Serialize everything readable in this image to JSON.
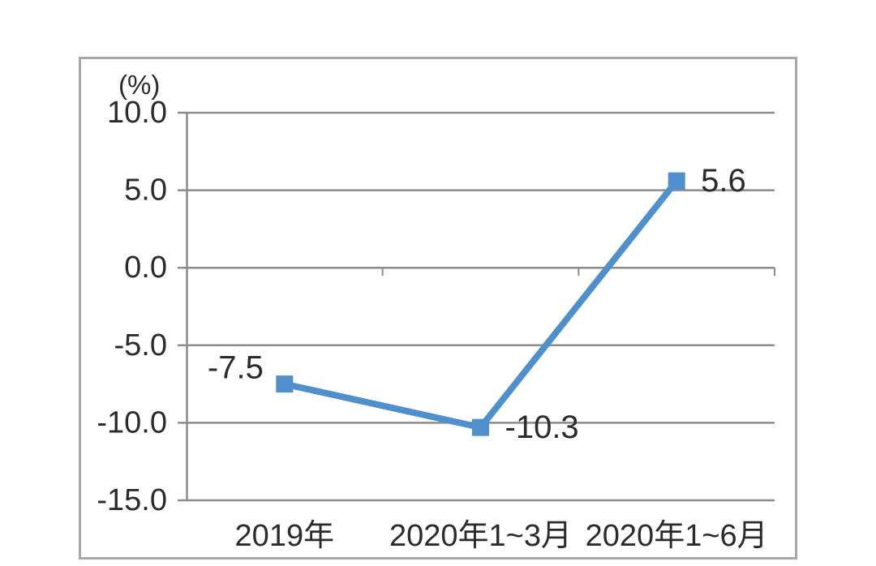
{
  "chart_data": {
    "type": "line",
    "title": "",
    "unit_label": "(%)",
    "categories": [
      "2019年",
      "2020年1~3月",
      "2020年1~6月"
    ],
    "series": [
      {
        "name": "growth-rate",
        "values": [
          -7.5,
          -10.3,
          5.6
        ],
        "color": "#4F8FCC",
        "marker": "square",
        "data_labels": [
          {
            "text": "-7.5",
            "position": "left"
          },
          {
            "text": "-10.3",
            "position": "right"
          },
          {
            "text": "5.6",
            "position": "right"
          }
        ]
      }
    ],
    "xlabel": "",
    "ylabel": "(%)",
    "y_axis": {
      "min": -15,
      "max": 10,
      "step": 5,
      "tick_labels": [
        "10.0",
        "5.0",
        "0.0",
        "-5.0",
        "-10.0",
        "-15.0"
      ]
    },
    "ylim": [
      -15,
      10
    ],
    "grid": true,
    "legend": "none",
    "colors": {
      "line": "#4F8FCC",
      "grid": "#8c8c8c",
      "axis": "#8c8c8c",
      "frame": "#a6a6a6",
      "text": "#2b2b2b",
      "background": "#ffffff"
    }
  }
}
